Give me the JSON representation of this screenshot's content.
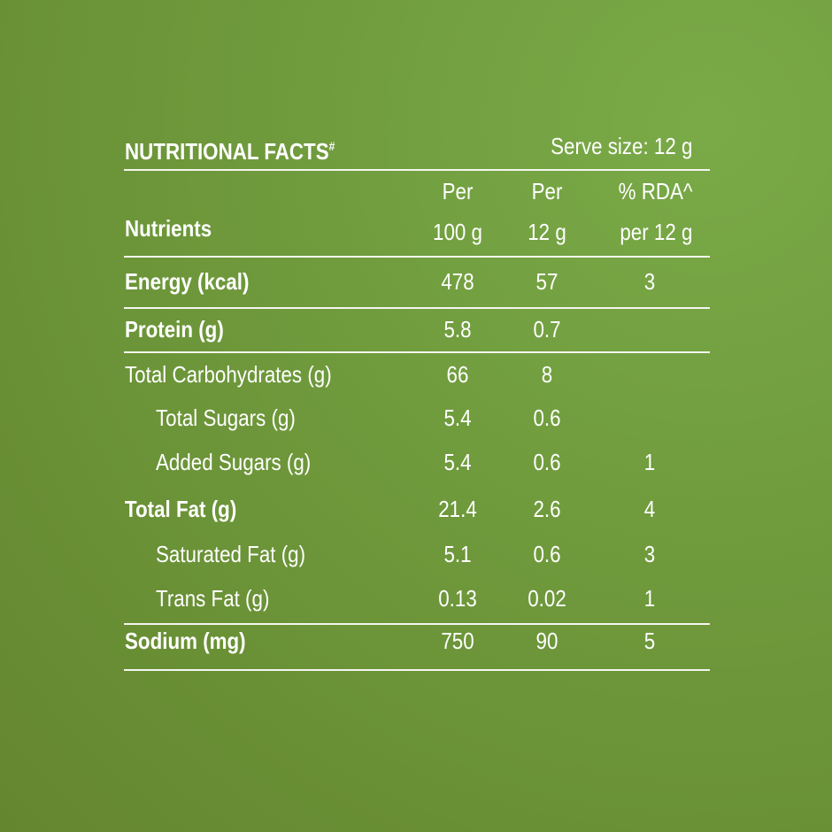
{
  "title": "NUTRITIONAL FACTS",
  "title_mark": "#",
  "serve_size": "Serve size: 12 g",
  "headers": {
    "nutrients": "Nutrients",
    "per100_1": "Per",
    "per100_2": "100 g",
    "per12_1": "Per",
    "per12_2": "12 g",
    "rda_1": "% RDA^",
    "rda_2": "per 12 g"
  },
  "rows": [
    {
      "name": "Energy (kcal)",
      "per100": "478",
      "per12": "57",
      "rda": "3",
      "bold": true,
      "indent": false
    },
    {
      "name": "Protein (g)",
      "per100": "5.8",
      "per12": "0.7",
      "rda": "",
      "bold": true,
      "indent": false
    },
    {
      "name": "Total Carbohydrates (g)",
      "per100": "66",
      "per12": "8",
      "rda": "",
      "bold": false,
      "indent": false
    },
    {
      "name": "Total Sugars (g)",
      "per100": "5.4",
      "per12": "0.6",
      "rda": "",
      "bold": false,
      "indent": true
    },
    {
      "name": "Added Sugars (g)",
      "per100": "5.4",
      "per12": "0.6",
      "rda": "1",
      "bold": false,
      "indent": true
    },
    {
      "name": "Total Fat (g)",
      "per100": "21.4",
      "per12": "2.6",
      "rda": "4",
      "bold": true,
      "indent": false
    },
    {
      "name": "Saturated Fat (g)",
      "per100": "5.1",
      "per12": "0.6",
      "rda": "3",
      "bold": false,
      "indent": true
    },
    {
      "name": "Trans Fat (g)",
      "per100": "0.13",
      "per12": "0.02",
      "rda": "1",
      "bold": false,
      "indent": true
    },
    {
      "name": "Sodium (mg)",
      "per100": "750",
      "per12": "90",
      "rda": "5",
      "bold": true,
      "indent": false
    }
  ]
}
